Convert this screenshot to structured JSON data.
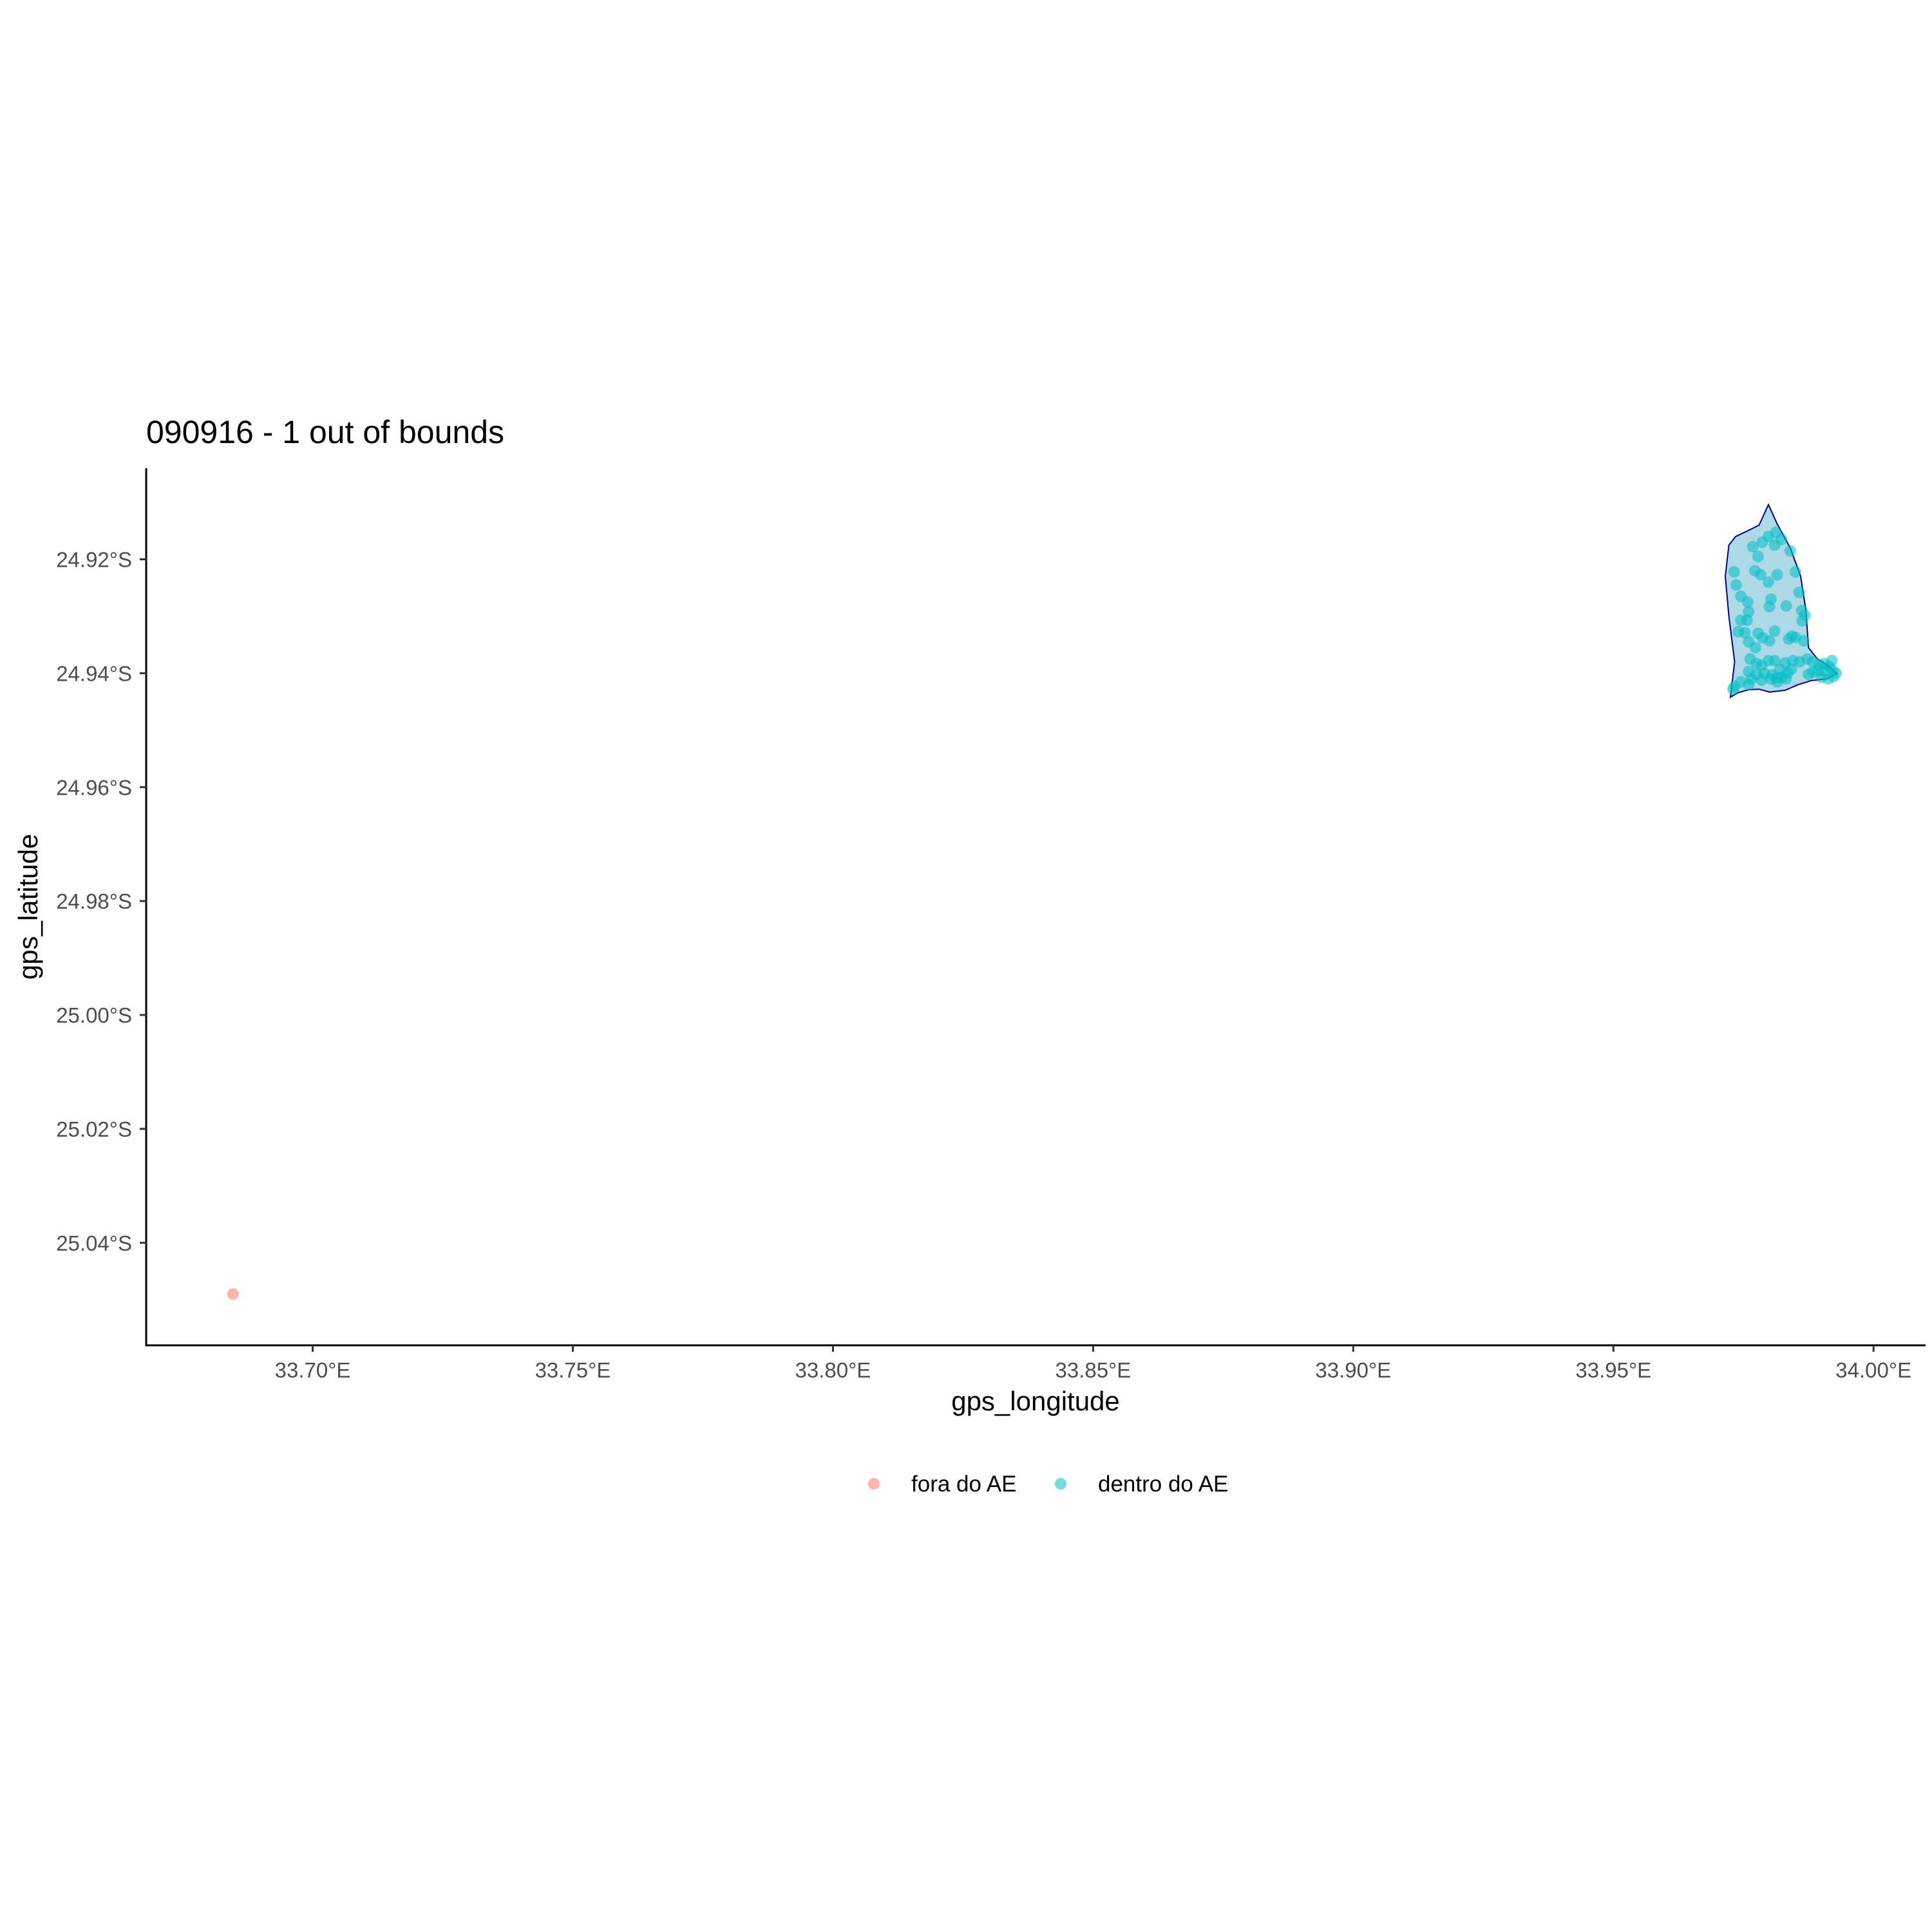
{
  "chart_data": {
    "type": "scatter",
    "title": "090916 - 1 out of bounds",
    "xlabel": "gps_longitude",
    "ylabel": "gps_latitude",
    "xlim": [
      33.668,
      34.01
    ],
    "ylim": [
      -25.058,
      -24.904
    ],
    "x_ticks": [
      {
        "value": 33.7,
        "label": "33.70°E"
      },
      {
        "value": 33.75,
        "label": "33.75°E"
      },
      {
        "value": 33.8,
        "label": "33.80°E"
      },
      {
        "value": 33.85,
        "label": "33.85°E"
      },
      {
        "value": 33.9,
        "label": "33.90°E"
      },
      {
        "value": 33.95,
        "label": "33.95°E"
      },
      {
        "value": 34.0,
        "label": "34.00°E"
      }
    ],
    "y_ticks": [
      {
        "value": -24.92,
        "label": "24.92°S"
      },
      {
        "value": -24.94,
        "label": "24.94°S"
      },
      {
        "value": -24.96,
        "label": "24.96°S"
      },
      {
        "value": -24.98,
        "label": "24.98°S"
      },
      {
        "value": -25.0,
        "label": "25.00°S"
      },
      {
        "value": -25.02,
        "label": "25.02°S"
      },
      {
        "value": -25.04,
        "label": "25.04°S"
      }
    ],
    "grid": false,
    "legend_position": "bottom",
    "boundary_polygon": {
      "fill": "#add8e6",
      "stroke": "#00008b",
      "points": [
        [
          33.9798,
          -24.9104
        ],
        [
          33.9815,
          -24.9138
        ],
        [
          33.984,
          -24.918
        ],
        [
          33.986,
          -24.923
        ],
        [
          33.987,
          -24.929
        ],
        [
          33.9875,
          -24.9355
        ],
        [
          33.9892,
          -24.9375
        ],
        [
          33.991,
          -24.9385
        ],
        [
          33.993,
          -24.94
        ],
        [
          33.991,
          -24.941
        ],
        [
          33.988,
          -24.9413
        ],
        [
          33.9855,
          -24.942
        ],
        [
          33.983,
          -24.943
        ],
        [
          33.98,
          -24.9433
        ],
        [
          33.978,
          -24.9428
        ],
        [
          33.976,
          -24.9429
        ],
        [
          33.974,
          -24.9434
        ],
        [
          33.9725,
          -24.9442
        ],
        [
          33.9733,
          -24.938
        ],
        [
          33.9722,
          -24.93
        ],
        [
          33.9715,
          -24.923
        ],
        [
          33.9722,
          -24.9175
        ],
        [
          33.9735,
          -24.916
        ],
        [
          33.9758,
          -24.915
        ],
        [
          33.978,
          -24.914
        ]
      ]
    },
    "series": [
      {
        "name": "fora do AE",
        "color": "#f8766d",
        "points": [
          [
            33.6847,
            -25.049
          ]
        ]
      },
      {
        "name": "dentro do AE",
        "color": "#00bfc4",
        "points": [
          [
            33.9786,
            -24.917
          ],
          [
            33.981,
            -24.9175
          ],
          [
            33.9798,
            -24.916
          ],
          [
            33.9812,
            -24.9153
          ],
          [
            33.9823,
            -24.9165
          ],
          [
            33.9768,
            -24.9178
          ],
          [
            33.9778,
            -24.9195
          ],
          [
            33.984,
            -24.9185
          ],
          [
            33.9732,
            -24.9222
          ],
          [
            33.9772,
            -24.922
          ],
          [
            33.9783,
            -24.9227
          ],
          [
            33.9815,
            -24.9227
          ],
          [
            33.985,
            -24.9222
          ],
          [
            33.9736,
            -24.9245
          ],
          [
            33.9798,
            -24.924
          ],
          [
            33.9857,
            -24.9258
          ],
          [
            33.9745,
            -24.9265
          ],
          [
            33.9758,
            -24.9275
          ],
          [
            33.98,
            -24.9283
          ],
          [
            33.9803,
            -24.927
          ],
          [
            33.9832,
            -24.9282
          ],
          [
            33.9862,
            -24.929
          ],
          [
            33.9868,
            -24.9298
          ],
          [
            33.9863,
            -24.9308
          ],
          [
            33.976,
            -24.9292
          ],
          [
            33.9757,
            -24.9307
          ],
          [
            33.9745,
            -24.9307
          ],
          [
            33.974,
            -24.9327
          ],
          [
            33.9753,
            -24.9329
          ],
          [
            33.9778,
            -24.933
          ],
          [
            33.976,
            -24.9345
          ],
          [
            33.9773,
            -24.9355
          ],
          [
            33.9787,
            -24.9338
          ],
          [
            33.98,
            -24.9343
          ],
          [
            33.981,
            -24.9326
          ],
          [
            33.9837,
            -24.934
          ],
          [
            33.9843,
            -24.9335
          ],
          [
            33.985,
            -24.9337
          ],
          [
            33.9866,
            -24.9343
          ],
          [
            33.9763,
            -24.9375
          ],
          [
            33.9775,
            -24.9383
          ],
          [
            33.9785,
            -24.9386
          ],
          [
            33.9798,
            -24.9378
          ],
          [
            33.981,
            -24.9378
          ],
          [
            33.983,
            -24.9382
          ],
          [
            33.9845,
            -24.9378
          ],
          [
            33.9858,
            -24.938
          ],
          [
            33.9873,
            -24.9375
          ],
          [
            33.9883,
            -24.938
          ],
          [
            33.9895,
            -24.9385
          ],
          [
            33.9905,
            -24.9383
          ],
          [
            33.9915,
            -24.9388
          ],
          [
            33.992,
            -24.9378
          ],
          [
            33.9928,
            -24.94
          ],
          [
            33.9922,
            -24.9395
          ],
          [
            33.9905,
            -24.9397
          ],
          [
            33.9893,
            -24.9395
          ],
          [
            33.9883,
            -24.9398
          ],
          [
            33.9875,
            -24.9402
          ],
          [
            33.99,
            -24.9407
          ],
          [
            33.9913,
            -24.941
          ],
          [
            33.9923,
            -24.9406
          ],
          [
            33.976,
            -24.9397
          ],
          [
            33.9775,
            -24.9402
          ],
          [
            33.979,
            -24.94
          ],
          [
            33.9805,
            -24.9403
          ],
          [
            33.9815,
            -24.9408
          ],
          [
            33.9825,
            -24.9407
          ],
          [
            33.9835,
            -24.94
          ],
          [
            33.982,
            -24.9393
          ],
          [
            33.9842,
            -24.9393
          ],
          [
            33.9745,
            -24.9415
          ],
          [
            33.976,
            -24.942
          ],
          [
            33.9765,
            -24.941
          ],
          [
            33.9785,
            -24.9412
          ],
          [
            33.9803,
            -24.941
          ],
          [
            33.9815,
            -24.9415
          ],
          [
            33.9832,
            -24.941
          ],
          [
            33.9733,
            -24.9423
          ],
          [
            33.973,
            -24.9428
          ]
        ]
      }
    ]
  }
}
